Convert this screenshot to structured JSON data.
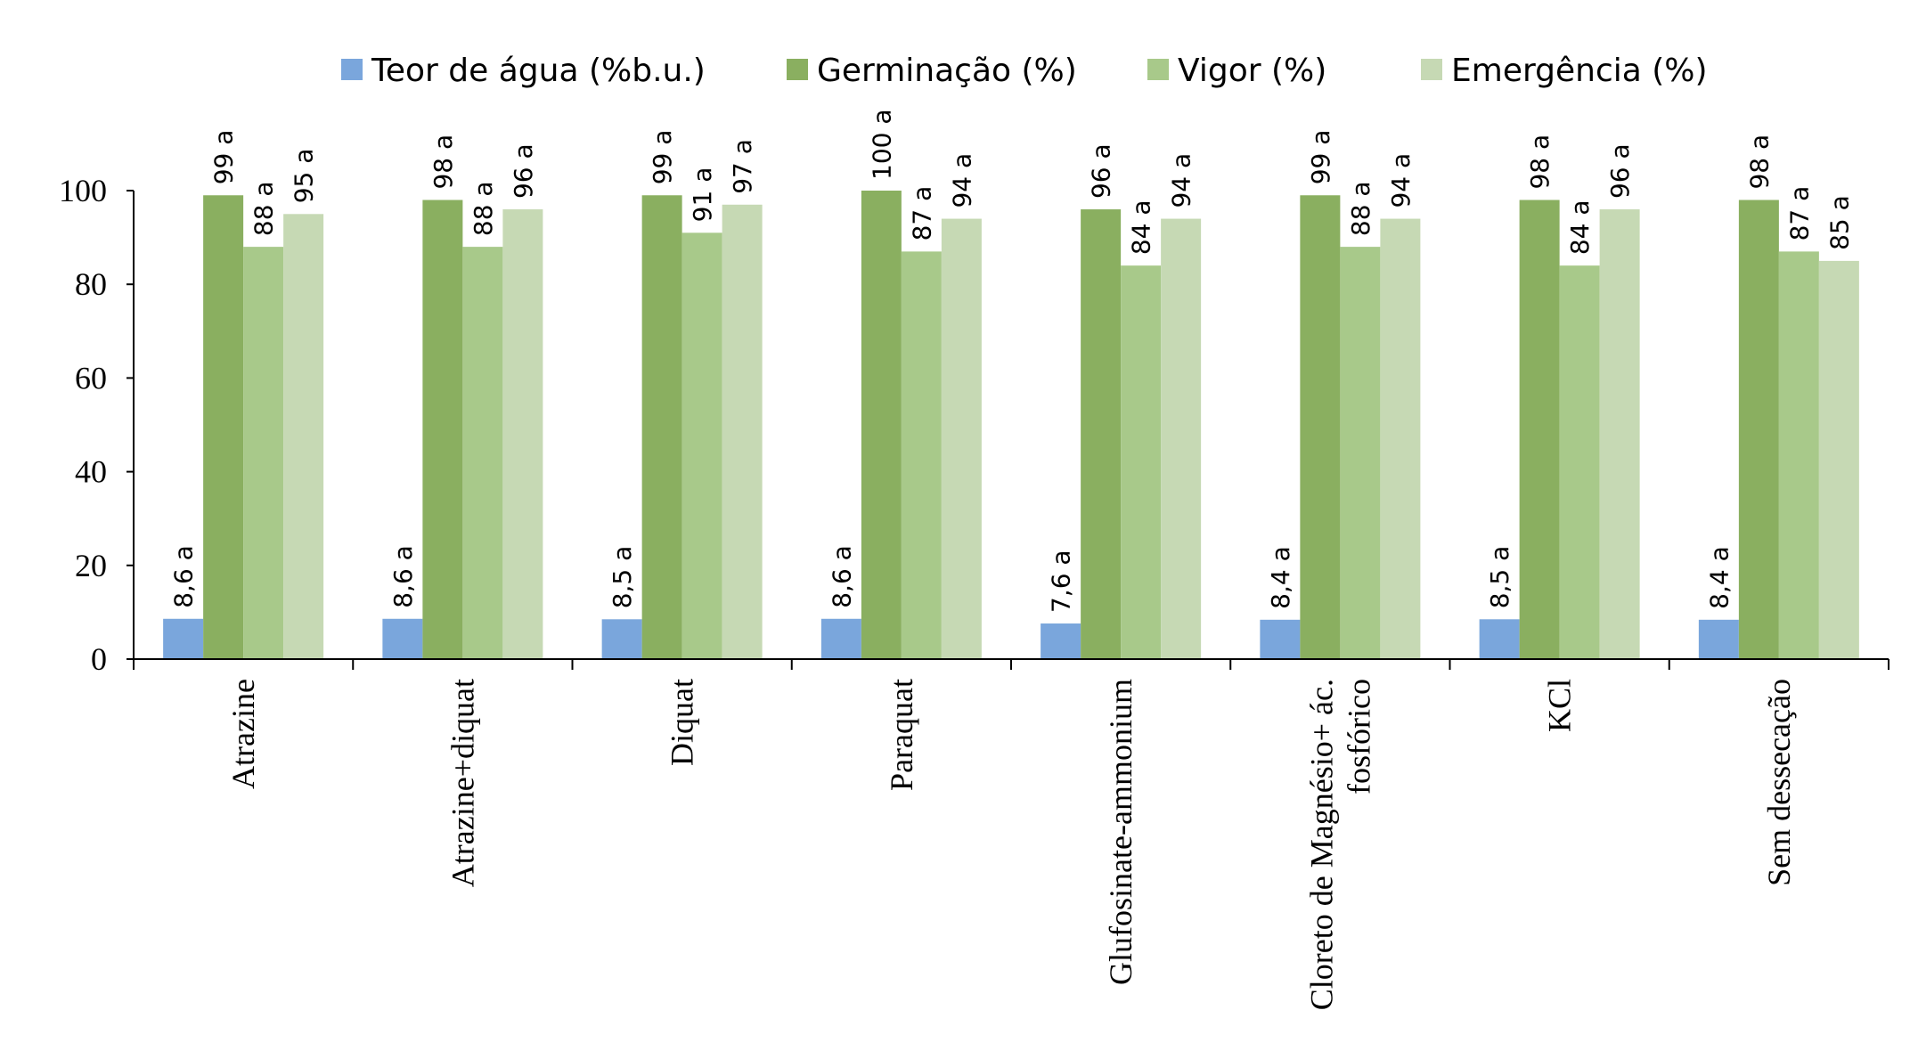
{
  "chart_data": {
    "type": "bar",
    "title": "",
    "xlabel": "",
    "ylabel": "",
    "ylim": [
      0,
      100
    ],
    "yticks": [
      "0",
      "20",
      "40",
      "60",
      "80",
      "100"
    ],
    "legend_position": "top",
    "categories": [
      [
        "Atrazine"
      ],
      [
        "Atrazine+diquat"
      ],
      [
        "Diquat"
      ],
      [
        "Paraquat"
      ],
      [
        "Glufosinate-ammonium"
      ],
      [
        "Cloreto de Magnésio+ ác.",
        "fosfórico"
      ],
      [
        "KCl"
      ],
      [
        "Sem dessecação"
      ]
    ],
    "series": [
      {
        "name": "Teor de água (%b.u.)",
        "color": "#7aa6dc",
        "values": [
          8.6,
          8.6,
          8.5,
          8.6,
          7.6,
          8.4,
          8.5,
          8.4
        ],
        "labels": [
          "8,6 a",
          "8,6 a",
          "8,5 a",
          "8,6 a",
          "7,6 a",
          "8,4 a",
          "8,5 a",
          "8,4 a"
        ]
      },
      {
        "name": "Germinação (%)",
        "color": "#8aaf60",
        "values": [
          99,
          98,
          99,
          100,
          96,
          99,
          98,
          98
        ],
        "labels": [
          "99 a",
          "98 a",
          "99 a",
          "100 a",
          "96 a",
          "99 a",
          "98 a",
          "98 a"
        ]
      },
      {
        "name": "Vigor (%)",
        "color": "#a8c98a",
        "values": [
          88,
          88,
          91,
          87,
          84,
          88,
          84,
          87
        ],
        "labels": [
          "88 a",
          "88 a",
          "91 a",
          "87 a",
          "84 a",
          "88 a",
          "84 a",
          "87 a"
        ]
      },
      {
        "name": "Emergência (%)",
        "color": "#c6d9b4",
        "values": [
          95,
          96,
          97,
          94,
          94,
          94,
          96,
          85
        ],
        "labels": [
          "95 a",
          "96 a",
          "97 a",
          "94 a",
          "94 a",
          "94 a",
          "96 a",
          "85 a"
        ]
      }
    ]
  }
}
